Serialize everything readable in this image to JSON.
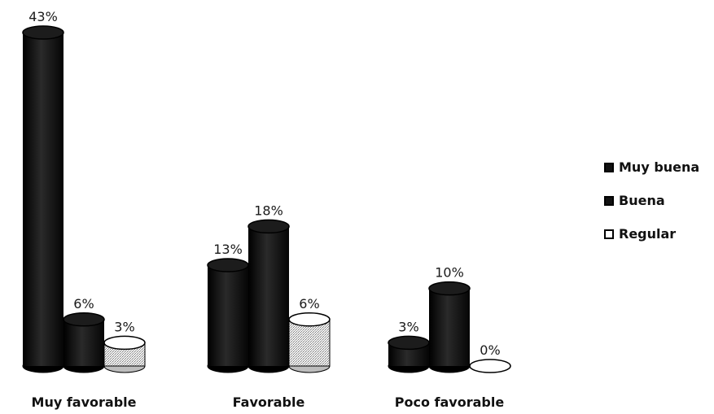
{
  "chart_data": {
    "type": "bar",
    "style": "3d-cylinder",
    "categories": [
      "Muy favorable",
      "Favorable",
      "Poco favorable"
    ],
    "series": [
      {
        "name": "Muy buena",
        "values": [
          43,
          13,
          3
        ],
        "color": "#111111"
      },
      {
        "name": "Buena",
        "values": [
          6,
          18,
          10
        ],
        "color": "#111111"
      },
      {
        "name": "Regular",
        "values": [
          3,
          6,
          0
        ],
        "color": "#d8d8d8"
      }
    ],
    "value_labels": [
      [
        "43%",
        "13%",
        "3%"
      ],
      [
        "6%",
        "18%",
        "10%"
      ],
      [
        "3%",
        "6%",
        "0%"
      ]
    ],
    "unit": "%",
    "ylim": [
      0,
      43
    ],
    "grid": false,
    "legend_position": "right"
  }
}
